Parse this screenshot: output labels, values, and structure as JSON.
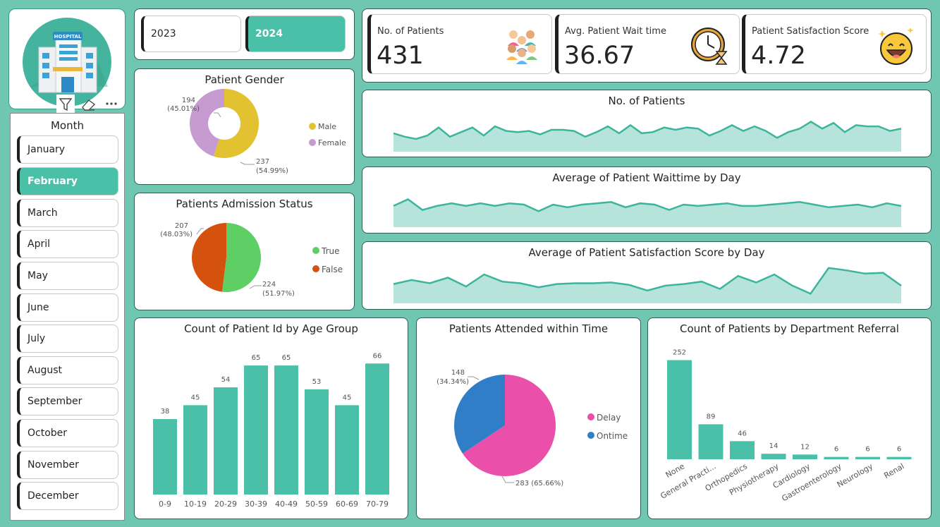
{
  "logo": {
    "sign": "HOSPITAL"
  },
  "month_slicer": {
    "title": "Month",
    "items": [
      "January",
      "February",
      "March",
      "April",
      "May",
      "June",
      "July",
      "August",
      "September",
      "October",
      "November",
      "December"
    ],
    "selected": "February"
  },
  "year_slicer": {
    "items": [
      "2023",
      "2024"
    ],
    "selected": "2024"
  },
  "kpis": [
    {
      "label": "No. of Patients",
      "value": "431",
      "icon": "patients-group-icon"
    },
    {
      "label": "Avg. Patient Wait time",
      "value": "36.67",
      "icon": "clock-hourglass-icon"
    },
    {
      "label": "Patient Satisfaction Score",
      "value": "4.72",
      "icon": "smiley-face-icon"
    }
  ],
  "colors": {
    "teal": "#4ac0a8",
    "background": "#6fc6b1",
    "male": "#e3c232",
    "female": "#c59bd1",
    "true": "#5ecf64",
    "false": "#d4520e",
    "delay": "#ea4fa9",
    "ontime": "#317ec8",
    "area_fill": "#b7e4da",
    "area_line": "#3db49c"
  },
  "chart_data": [
    {
      "id": "gender",
      "type": "pie",
      "variant": "donut",
      "title": "Patient Gender",
      "labels": [
        "Male",
        "Female"
      ],
      "values": [
        237,
        194
      ],
      "data_labels": [
        [
          "237",
          "(54.99%)"
        ],
        [
          "194",
          "(45.01%)"
        ]
      ],
      "legend": "right"
    },
    {
      "id": "admission",
      "type": "pie",
      "title": "Patients Admission Status",
      "labels": [
        "True",
        "False"
      ],
      "values": [
        224,
        207
      ],
      "data_labels": [
        [
          "224",
          "(51.97%)"
        ],
        [
          "207",
          "(48.03%)"
        ]
      ],
      "legend": "right"
    },
    {
      "id": "patients_trend",
      "type": "area",
      "title": "No. of Patients",
      "values": [
        16,
        13,
        11,
        14,
        21,
        13,
        17,
        21,
        14,
        22,
        18,
        17,
        18,
        15,
        19,
        19,
        18,
        13,
        17,
        22,
        16,
        23,
        16,
        17,
        21,
        19,
        21,
        20,
        14,
        18,
        23,
        18,
        22,
        18,
        12,
        17,
        20,
        26,
        20,
        25,
        17,
        23,
        22,
        22,
        18,
        20
      ],
      "ylim": [
        0,
        30
      ]
    },
    {
      "id": "wait_trend",
      "type": "area",
      "title": "Average of Patient Waittime by Day",
      "values": [
        36,
        41,
        33,
        36,
        38,
        36,
        38,
        36,
        38,
        37,
        32,
        37,
        35,
        37,
        38,
        39,
        35,
        38,
        37,
        33,
        37,
        36,
        37,
        38,
        36,
        36,
        37,
        38,
        39,
        37,
        35,
        36,
        37,
        35,
        38,
        36
      ],
      "ylim": [
        20,
        45
      ]
    },
    {
      "id": "satisfaction_trend",
      "type": "area",
      "title": "Average of Patient Satisfaction Score by Day",
      "values": [
        4.7,
        4.95,
        4.75,
        5.1,
        4.55,
        5.3,
        4.85,
        4.75,
        4.5,
        4.7,
        4.75,
        4.75,
        4.8,
        4.65,
        4.3,
        4.6,
        4.7,
        4.85,
        4.4,
        5.2,
        4.8,
        5.3,
        4.6,
        4.1,
        5.7,
        5.55,
        5.35,
        5.4,
        4.6
      ],
      "ylim": [
        3.5,
        6
      ]
    },
    {
      "id": "age_group",
      "type": "bar",
      "title": "Count of Patient Id by Age Group",
      "categories": [
        "0-9",
        "10-19",
        "20-29",
        "30-39",
        "40-49",
        "50-59",
        "60-69",
        "70-79"
      ],
      "values": [
        38,
        45,
        54,
        65,
        65,
        53,
        45,
        66
      ],
      "ylim": [
        0,
        70
      ]
    },
    {
      "id": "attended",
      "type": "pie",
      "title": "Patients Attended within Time",
      "labels": [
        "Delay",
        "Ontime"
      ],
      "values": [
        283,
        148
      ],
      "data_labels": [
        [
          "283 (65.66%)"
        ],
        [
          "148",
          "(34.34%)"
        ]
      ],
      "legend": "right"
    },
    {
      "id": "department",
      "type": "bar",
      "title": "Count of Patients by Department Referral",
      "categories": [
        "None",
        "General Practi...",
        "Orthopedics",
        "Physiotherapy",
        "Cardiology",
        "Gastroenterology",
        "Neurology",
        "Renal"
      ],
      "values": [
        252,
        89,
        46,
        14,
        12,
        6,
        6,
        6
      ],
      "ylim": [
        0,
        260
      ]
    }
  ]
}
